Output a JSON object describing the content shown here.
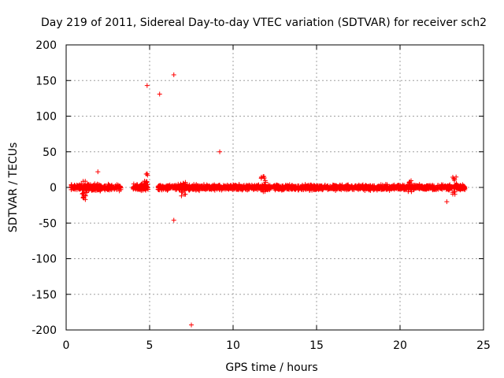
{
  "chart_data": {
    "type": "scatter",
    "title": "Day 219 of 2011, Sidereal Day-to-day VTEC variation (SDTVAR) for receiver sch2",
    "xlabel": "GPS time / hours",
    "ylabel": "SDTVAR / TECUs",
    "xlim": [
      0,
      25
    ],
    "ylim": [
      -200,
      200
    ],
    "xticks": [
      0,
      5,
      10,
      15,
      20,
      25
    ],
    "yticks": [
      200,
      150,
      100,
      50,
      0,
      -50,
      -100,
      -150,
      -200
    ],
    "grid": true,
    "legend": "none",
    "marker": "+",
    "color": "#ff0000",
    "dense_segments": [
      {
        "x_start": 0.3,
        "x_end": 3.3,
        "y_min": -6,
        "y_max": 6
      },
      {
        "x_start": 4.0,
        "x_end": 4.9,
        "y_min": -6,
        "y_max": 6
      },
      {
        "x_start": 5.5,
        "x_end": 9.8,
        "y_min": -5,
        "y_max": 5
      },
      {
        "x_start": 9.8,
        "x_end": 23.9,
        "y_min": -5,
        "y_max": 5
      }
    ],
    "spikes": [
      {
        "x": 1.1,
        "y_min": -18,
        "y_max": 10
      },
      {
        "x": 4.8,
        "y_min": -5,
        "y_max": 20
      },
      {
        "x": 7.0,
        "y_min": -12,
        "y_max": 7
      },
      {
        "x": 11.8,
        "y_min": -7,
        "y_max": 16
      },
      {
        "x": 20.6,
        "y_min": -6,
        "y_max": 10
      },
      {
        "x": 23.3,
        "y_min": -10,
        "y_max": 16
      }
    ],
    "outliers": [
      {
        "x": 1.9,
        "y": 22
      },
      {
        "x": 4.85,
        "y": 143
      },
      {
        "x": 5.6,
        "y": 131
      },
      {
        "x": 6.45,
        "y": 158
      },
      {
        "x": 6.45,
        "y": -46
      },
      {
        "x": 7.5,
        "y": -193
      },
      {
        "x": 9.2,
        "y": 50
      },
      {
        "x": 22.8,
        "y": -20
      },
      {
        "x": 1.15,
        "y": -17
      },
      {
        "x": 11.8,
        "y": 15
      }
    ]
  }
}
